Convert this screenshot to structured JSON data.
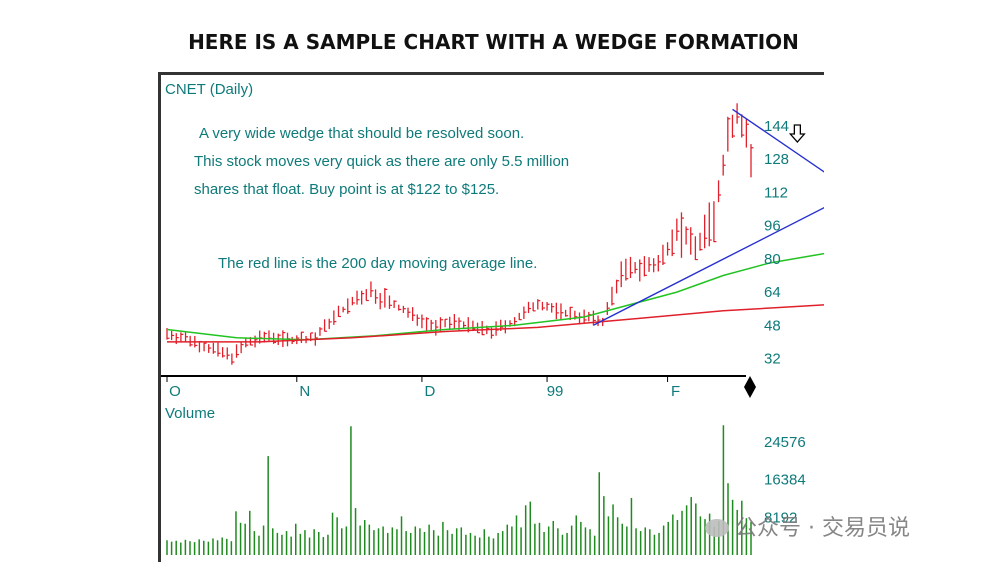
{
  "page": {
    "title": "HERE IS A SAMPLE CHART WITH A WEDGE FORMATION",
    "watermark": "公众号 · 交易员说"
  },
  "colors": {
    "text": "#0f7a7a",
    "price_bars": "#e0202a",
    "ma200": "#e0202a",
    "ma50": "#22c322",
    "wedge": "#2630d0",
    "volume": "#1f8a1f",
    "axis": "#000000"
  },
  "chart_data": [
    {
      "type": "bar",
      "subtype": "ohlc",
      "symbol_label": "CNET (Daily)",
      "annotations": [
        "A very wide wedge that should be resolved soon.",
        "This stock moves very quick as there are only 5.5 million",
        "shares that float. Buy point is at $122 to $125.",
        "The red line is the 200 day moving average line."
      ],
      "yticks": [
        32,
        48,
        64,
        80,
        96,
        112,
        128,
        144
      ],
      "ylim": [
        26,
        156
      ],
      "x_tick_labels": [
        "O",
        "N",
        "D",
        "99",
        "F"
      ],
      "x_tick_days": [
        0,
        28,
        55,
        82,
        108
      ],
      "num_days": 127,
      "price_path": [
        [
          0,
          44
        ],
        [
          5,
          41
        ],
        [
          8,
          38
        ],
        [
          14,
          33
        ],
        [
          17,
          39
        ],
        [
          22,
          43
        ],
        [
          26,
          41
        ],
        [
          32,
          42
        ],
        [
          36,
          52
        ],
        [
          40,
          59
        ],
        [
          44,
          64
        ],
        [
          48,
          59
        ],
        [
          52,
          54
        ],
        [
          58,
          47
        ],
        [
          62,
          50
        ],
        [
          66,
          47
        ],
        [
          70,
          45
        ],
        [
          75,
          50
        ],
        [
          80,
          59
        ],
        [
          84,
          55
        ],
        [
          90,
          52
        ],
        [
          94,
          50
        ],
        [
          98,
          73
        ],
        [
          102,
          76
        ],
        [
          106,
          77
        ],
        [
          110,
          95
        ],
        [
          114,
          86
        ],
        [
          118,
          98
        ],
        [
          121,
          140
        ],
        [
          123,
          150
        ],
        [
          125,
          140
        ],
        [
          127,
          115
        ],
        [
          130,
          95
        ],
        [
          132,
          122
        ],
        [
          135,
          128
        ],
        [
          138,
          120
        ],
        [
          141,
          118
        ],
        [
          143,
          113
        ]
      ],
      "ma200": [
        [
          0,
          40
        ],
        [
          20,
          40
        ],
        [
          40,
          42
        ],
        [
          60,
          45
        ],
        [
          80,
          47
        ],
        [
          100,
          51
        ],
        [
          120,
          55
        ],
        [
          143,
          58
        ]
      ],
      "ma50": [
        [
          0,
          46
        ],
        [
          15,
          42
        ],
        [
          30,
          41
        ],
        [
          45,
          43
        ],
        [
          60,
          46
        ],
        [
          75,
          48
        ],
        [
          90,
          52
        ],
        [
          100,
          58
        ],
        [
          110,
          64
        ],
        [
          120,
          72
        ],
        [
          130,
          78
        ],
        [
          143,
          83
        ]
      ],
      "wedge_upper": [
        [
          122,
          152
        ],
        [
          143,
          120
        ]
      ],
      "wedge_lower": [
        [
          92,
          48
        ],
        [
          143,
          106
        ]
      ],
      "arrow_day": 136
    },
    {
      "type": "bar",
      "title": "Volume",
      "yticks": [
        8192,
        16384,
        24576
      ],
      "ylim": [
        0,
        30000
      ],
      "values": [
        3200,
        2900,
        3100,
        2700,
        3300,
        3000,
        2800,
        3400,
        3100,
        2900,
        3600,
        3200,
        3800,
        3500,
        3000,
        9500,
        7000,
        6800,
        9600,
        5200,
        4200,
        6400,
        21500,
        5800,
        4800,
        4400,
        5200,
        4000,
        6800,
        4600,
        5400,
        3800,
        5600,
        5000,
        3900,
        4400,
        9200,
        8200,
        5800,
        6200,
        28000,
        10200,
        6400,
        7600,
        6600,
        5400,
        5800,
        6200,
        4800,
        6000,
        5600,
        8400,
        5200,
        4800,
        6200,
        5800,
        5000,
        6600,
        5400,
        4200,
        7200,
        5400,
        4600,
        5800,
        6000,
        4400,
        4800,
        4200,
        3800,
        5600,
        4000,
        3600,
        4800,
        5200,
        6600,
        6200,
        8600,
        6000,
        10800,
        11600,
        6800,
        7000,
        5000,
        6200,
        7400,
        5800,
        4400,
        4800,
        6400,
        8600,
        7200,
        6000,
        5600,
        4200,
        18000,
        12800,
        8400,
        11000,
        8200,
        6800,
        6200,
        12400,
        5800,
        5200,
        6000,
        5600,
        4400,
        4800,
        6400,
        7200,
        8800,
        7600,
        9600,
        10800,
        12600,
        11200,
        8400,
        7800,
        9000,
        6200,
        7400,
        28200,
        15600,
        12000,
        9800,
        11800,
        8000,
        7200
      ]
    }
  ]
}
